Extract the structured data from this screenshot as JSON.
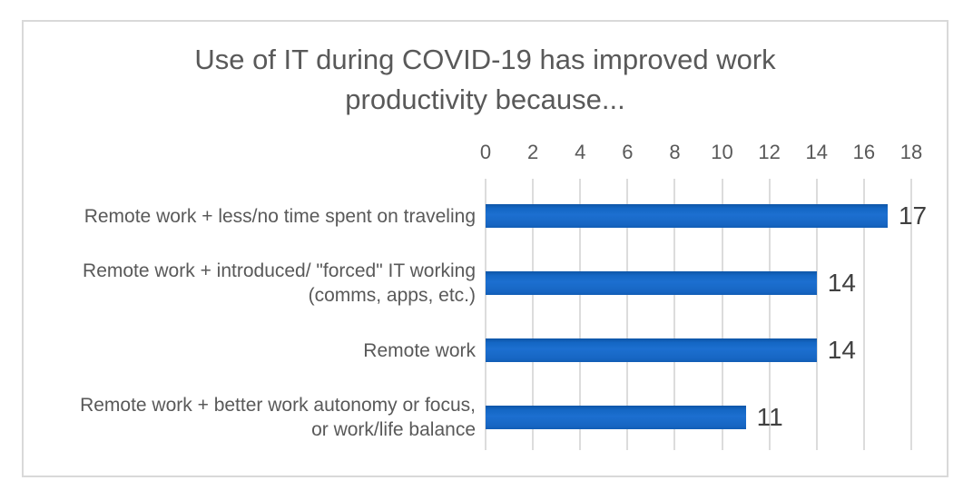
{
  "chart_data": {
    "type": "bar",
    "orientation": "horizontal",
    "title": "Use of IT during COVID-19 has improved work productivity because...",
    "title_lines": [
      "Use of IT during COVID-19 has improved work",
      "productivity because..."
    ],
    "categories": [
      "Remote work + less/no time spent on traveling",
      "Remote work + introduced/ \"forced\"  IT working (comms, apps, etc.)",
      "Remote work",
      "Remote work + better work autonomy or focus, or work/life balance"
    ],
    "category_lines": [
      [
        "Remote work + less/no time spent on traveling"
      ],
      [
        "Remote work + introduced/ \"forced\"  IT working",
        "(comms, apps, etc.)"
      ],
      [
        "Remote work"
      ],
      [
        "Remote work + better work autonomy or focus,",
        "or work/life balance"
      ]
    ],
    "values": [
      17,
      14,
      14,
      11
    ],
    "data_labels": [
      "17",
      "14",
      "14",
      "11"
    ],
    "xlabel": "",
    "ylabel": "",
    "xlim": [
      0,
      18
    ],
    "x_ticks": [
      0,
      2,
      4,
      6,
      8,
      10,
      12,
      14,
      16,
      18
    ],
    "grid": true,
    "legend": false,
    "axis_position": "top",
    "colors": {
      "bar": "#1565c0",
      "gridline": "#dcdcdc",
      "chart_border": "#d9d9d9",
      "title_text": "#595959",
      "axis_text": "#595959",
      "category_text": "#595959",
      "value_text": "#404040",
      "background": "#ffffff"
    }
  }
}
